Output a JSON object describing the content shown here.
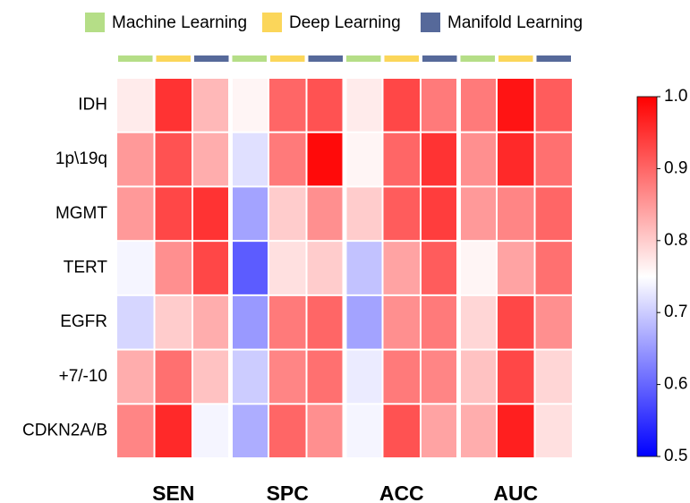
{
  "chart_data": {
    "type": "heatmap",
    "methods": [
      {
        "name": "Machine Learning",
        "color": "#b5de87"
      },
      {
        "name": "Deep Learning",
        "color": "#fbd65a"
      },
      {
        "name": "Manifold Learning",
        "color": "#56699a"
      }
    ],
    "groups": [
      "SEN",
      "SPC",
      "ACC",
      "AUC"
    ],
    "rows": [
      "IDH",
      "1p\\19q",
      "MGMT",
      "TERT",
      "EGFR",
      "+7/-10",
      "CDKN2A/B"
    ],
    "values": [
      [
        0.77,
        0.95,
        0.82,
        0.76,
        0.9,
        0.92,
        0.77,
        0.93,
        0.88,
        0.88,
        0.98,
        0.91
      ],
      [
        0.85,
        0.92,
        0.83,
        0.72,
        0.88,
        0.99,
        0.76,
        0.9,
        0.95,
        0.86,
        0.96,
        0.89
      ],
      [
        0.85,
        0.93,
        0.95,
        0.66,
        0.8,
        0.86,
        0.8,
        0.91,
        0.94,
        0.85,
        0.87,
        0.9
      ],
      [
        0.74,
        0.86,
        0.93,
        0.59,
        0.78,
        0.8,
        0.69,
        0.84,
        0.91,
        0.76,
        0.84,
        0.89
      ],
      [
        0.71,
        0.8,
        0.83,
        0.65,
        0.88,
        0.9,
        0.66,
        0.86,
        0.88,
        0.79,
        0.93,
        0.86
      ],
      [
        0.83,
        0.89,
        0.81,
        0.7,
        0.87,
        0.89,
        0.73,
        0.88,
        0.87,
        0.81,
        0.93,
        0.79
      ],
      [
        0.87,
        0.96,
        0.74,
        0.67,
        0.9,
        0.86,
        0.74,
        0.92,
        0.84,
        0.83,
        0.97,
        0.78
      ]
    ],
    "colormap": [
      "#0000ff",
      "#ffffff",
      "#ff0000"
    ],
    "zlim": [
      0.5,
      1.0
    ],
    "zticks": [
      0.5,
      0.6,
      0.7,
      0.8,
      0.9,
      {
        "value": 1.0,
        "label": "1.0"
      }
    ]
  }
}
